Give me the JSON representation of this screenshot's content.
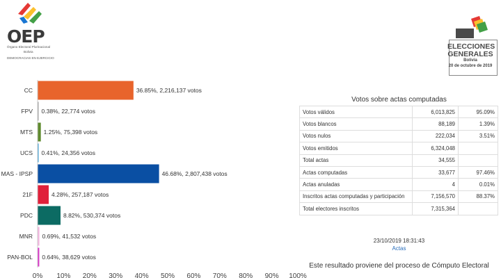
{
  "header": {
    "oep_logo": {
      "title": "OEP",
      "subtitle_1": "Órgano Electoral Plurinacional",
      "subtitle_2": "Bolivia",
      "tagline": "DEMOCRACIAS EN EJERCICIO"
    },
    "elections_logo": {
      "line1": "ELECCIONES",
      "line2": "GENERALES",
      "country": "Bolivia",
      "date": "20 de octubre de 2019"
    }
  },
  "chart_data": {
    "type": "bar",
    "orientation": "horizontal",
    "categories": [
      "CC",
      "FPV",
      "MTS",
      "UCS",
      "MAS - IPSP",
      "21F",
      "PDC",
      "MNR",
      "PAN-BOL"
    ],
    "values": [
      36.85,
      0.38,
      1.25,
      0.41,
      46.68,
      4.28,
      8.82,
      0.69,
      0.64
    ],
    "data_labels": [
      "36.85%,  2,216,137 votos",
      "0.38%,  22,774 votos",
      "1.25%,  75,398 votos",
      "0.41%,  24,356 votos",
      "46.68%,  2,807,438 votos",
      "4.28%,  257,187 votos",
      "8.82%,  530,374 votos",
      "0.69%,  41,532 votos",
      "0.64%,  38,629 votos"
    ],
    "colors": [
      "#e8642c",
      "#9e9e9e",
      "#5f8a2e",
      "#3aa0d8",
      "#0a4fa3",
      "#e0203a",
      "#0c6b63",
      "#f4b6e0",
      "#d834c8"
    ],
    "xlim": [
      0,
      100
    ],
    "xticks": [
      "0%",
      "10%",
      "20%",
      "30%",
      "40%",
      "50%",
      "60%",
      "70%",
      "80%",
      "90%",
      "100%"
    ],
    "grid": false
  },
  "summary": {
    "title": "Votos sobre actas computadas",
    "rows": [
      {
        "label": "Votos válidos",
        "value": "6,013,825",
        "pct": "95.09%"
      },
      {
        "label": "Votos blancos",
        "value": "88,189",
        "pct": "1.39%"
      },
      {
        "label": "Votos nulos",
        "value": "222,034",
        "pct": "3.51%"
      },
      {
        "label": "Votos emitidos",
        "value": "6,324,048",
        "pct": ""
      },
      {
        "label": "Total actas",
        "value": "34,555",
        "pct": ""
      },
      {
        "label": "Actas computadas",
        "value": "33,677",
        "pct": "97.46%"
      },
      {
        "label": "Actas anuladas",
        "value": "4",
        "pct": "0.01%"
      },
      {
        "label": "Inscritos actas computadas y participación",
        "value": "7,156,570",
        "pct": "88.37%"
      },
      {
        "label": "Total electores inscritos",
        "value": "7,315,364",
        "pct": ""
      }
    ]
  },
  "timestamp": "23/10/2019 18:31:43",
  "actas_link": "Actas",
  "footer_note": "Este resultado proviene del proceso de Cómputo Electoral"
}
